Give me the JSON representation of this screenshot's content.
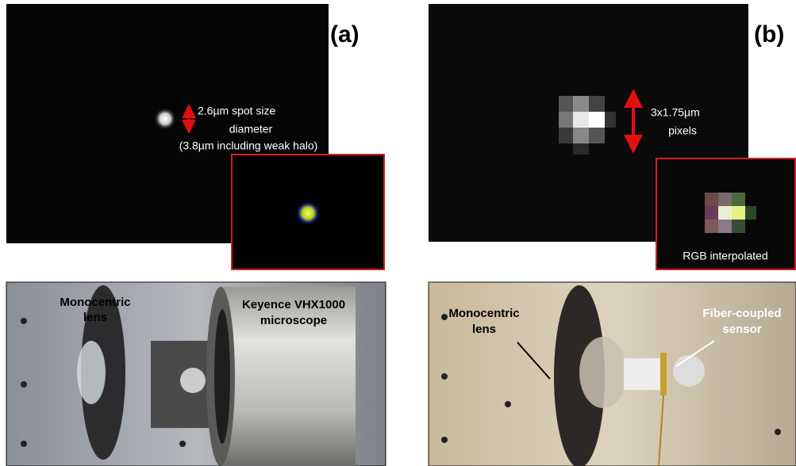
{
  "panels": [
    {
      "label": "(a)",
      "spot_annotation": [
        "2.6µm spot size",
        "diameter",
        "(3.8µm including weak halo)"
      ],
      "photo_labels": [
        [
          "Monocentric",
          "lens"
        ],
        [
          "Keyence VHX1000",
          "microscope"
        ]
      ]
    },
    {
      "label": "(b)",
      "spot_annotation": [
        "3x1.75µm",
        "pixels"
      ],
      "inset_caption": "RGB interpolated",
      "photo_labels": [
        [
          "Monocentric",
          "lens"
        ],
        [
          "Fiber-coupled",
          "sensor"
        ]
      ]
    }
  ]
}
